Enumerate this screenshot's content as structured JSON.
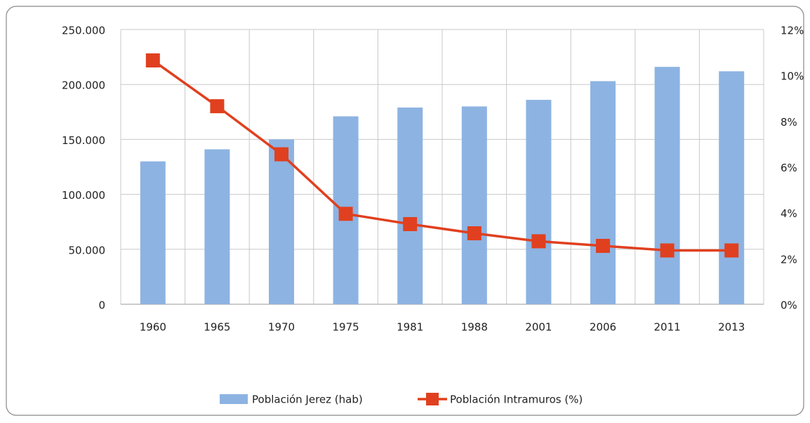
{
  "chart_data": {
    "type": "bar-line",
    "categories": [
      "1960",
      "1965",
      "1970",
      "1975",
      "1981",
      "1988",
      "2001",
      "2006",
      "2011",
      "2013"
    ],
    "series": [
      {
        "name": "Población Jerez (hab)",
        "type": "bar",
        "color": "#8db3e2",
        "axis": "y",
        "values": [
          130000,
          141000,
          150000,
          171000,
          179000,
          180000,
          186000,
          203000,
          216000,
          212000
        ]
      },
      {
        "name": "Población Intramuros (%)",
        "type": "line",
        "color": "#e0401f",
        "axis": "y2",
        "values": [
          10.65,
          8.65,
          6.55,
          3.95,
          3.5,
          3.1,
          2.75,
          2.55,
          2.35,
          2.35
        ]
      }
    ],
    "ylim": [
      0,
      250000
    ],
    "yticks": [
      0,
      {
        "value": 50000,
        "label": "50.000"
      },
      {
        "value": 100000,
        "label": "100.000"
      },
      {
        "value": 150000,
        "label": "150.000"
      },
      {
        "value": 200000,
        "label": "200.000"
      },
      {
        "value": 250000,
        "label": "250.000"
      }
    ],
    "y2lim": [
      0,
      12
    ],
    "y2ticks": [
      {
        "value": 0,
        "label": "0%"
      },
      {
        "value": 2,
        "label": "2%"
      },
      {
        "value": 4,
        "label": "4%"
      },
      {
        "value": 6,
        "label": "6%"
      },
      {
        "value": 8,
        "label": "8%"
      },
      {
        "value": 10,
        "label": "10%"
      },
      {
        "value": 12,
        "label": "12%"
      }
    ],
    "grid": true,
    "legend": "bottom"
  }
}
